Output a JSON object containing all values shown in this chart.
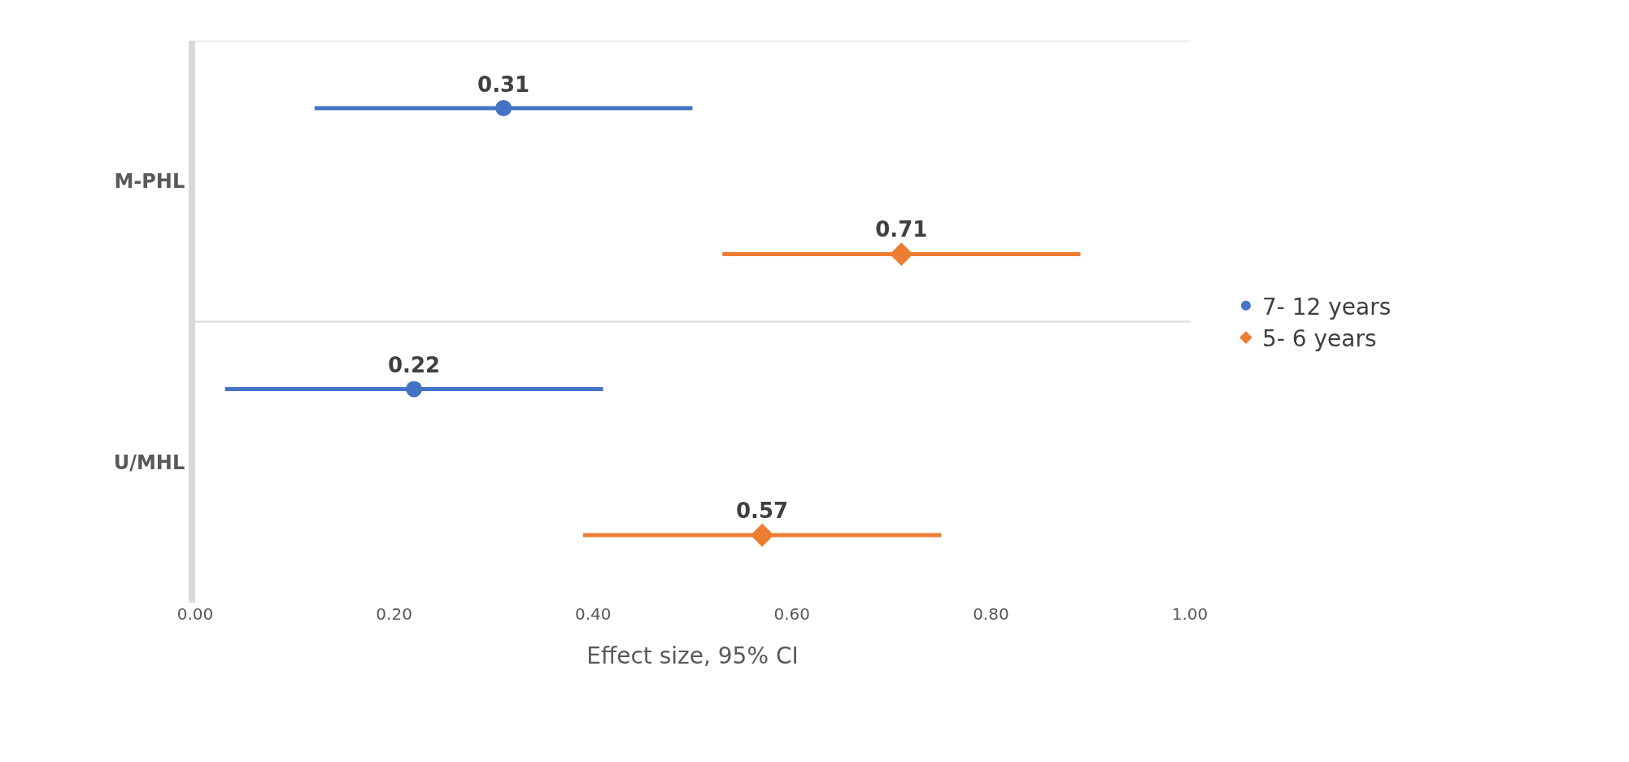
{
  "chart_data": {
    "type": "scatter",
    "orientation": "horizontal",
    "xlabel": "Effect size, 95% CI",
    "categories": [
      "M-PHL",
      "U/MHL"
    ],
    "series": [
      {
        "name": "7- 12 years",
        "color": "#4472c4",
        "marker": "circle",
        "values": [
          0.31,
          0.22
        ],
        "errors": [
          [
            0.12,
            0.5
          ],
          [
            0.03,
            0.41
          ]
        ]
      },
      {
        "name": "5- 6 years",
        "color": "#ed7d31",
        "marker": "diamond",
        "values": [
          0.71,
          0.57
        ],
        "errors": [
          [
            0.53,
            0.89
          ],
          [
            0.39,
            0.75
          ]
        ]
      }
    ],
    "xlim": [
      0,
      1
    ],
    "xticks": [
      {
        "value": 0,
        "label": "0.00"
      },
      {
        "value": 0.2,
        "label": "0.20"
      },
      {
        "value": 0.4,
        "label": "0.40"
      },
      {
        "value": 0.6,
        "label": "0.60"
      },
      {
        "value": 0.8,
        "label": "0.80"
      },
      {
        "value": 1,
        "label": "1.00"
      }
    ],
    "grid": "y",
    "data_labels": true,
    "legend": "right"
  }
}
